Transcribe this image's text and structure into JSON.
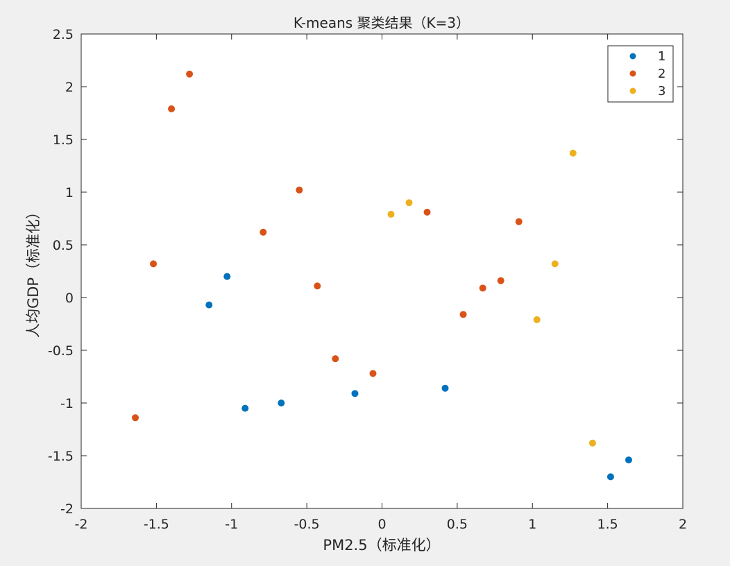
{
  "chart_data": {
    "type": "scatter",
    "title": "K-means 聚类结果（K=3）",
    "xlabel": "PM2.5（标准化）",
    "ylabel": "人均GDP（标准化）",
    "xlim": [
      -2,
      2
    ],
    "ylim": [
      -2,
      2.5
    ],
    "xticks": [
      "-2",
      "-1.5",
      "-1",
      "-0.5",
      "0",
      "0.5",
      "1",
      "1.5",
      "2"
    ],
    "yticks": [
      "-2",
      "-1.5",
      "-1",
      "-0.5",
      "0",
      "0.5",
      "1",
      "1.5",
      "2",
      "2.5"
    ],
    "xtick_values": [
      -2,
      -1.5,
      -1,
      -0.5,
      0,
      0.5,
      1,
      1.5,
      2
    ],
    "ytick_values": [
      -2,
      -1.5,
      -1,
      -0.5,
      0,
      0.5,
      1,
      1.5,
      2,
      2.5
    ],
    "grid": false,
    "legend_position": "top-right",
    "series": [
      {
        "name": "1",
        "color": "#0072bd",
        "points": [
          [
            -1.15,
            -0.07
          ],
          [
            -1.03,
            0.2
          ],
          [
            -0.91,
            -1.05
          ],
          [
            -0.67,
            -1.0
          ],
          [
            -0.18,
            -0.91
          ],
          [
            0.42,
            -0.86
          ],
          [
            1.52,
            -1.7
          ],
          [
            1.64,
            -1.54
          ]
        ]
      },
      {
        "name": "2",
        "color": "#d95319",
        "points": [
          [
            -1.64,
            -1.14
          ],
          [
            -1.52,
            0.32
          ],
          [
            -1.4,
            1.79
          ],
          [
            -1.28,
            2.12
          ],
          [
            -0.79,
            0.62
          ],
          [
            -0.55,
            1.02
          ],
          [
            -0.43,
            0.11
          ],
          [
            -0.31,
            -0.58
          ],
          [
            -0.06,
            -0.72
          ],
          [
            0.3,
            0.81
          ],
          [
            0.54,
            -0.16
          ],
          [
            0.67,
            0.09
          ],
          [
            0.79,
            0.16
          ],
          [
            0.91,
            0.72
          ]
        ]
      },
      {
        "name": "3",
        "color": "#edb120",
        "points": [
          [
            0.06,
            0.79
          ],
          [
            0.18,
            0.9
          ],
          [
            1.03,
            -0.21
          ],
          [
            1.15,
            0.32
          ],
          [
            1.27,
            1.37
          ],
          [
            1.4,
            -1.38
          ]
        ]
      }
    ]
  }
}
